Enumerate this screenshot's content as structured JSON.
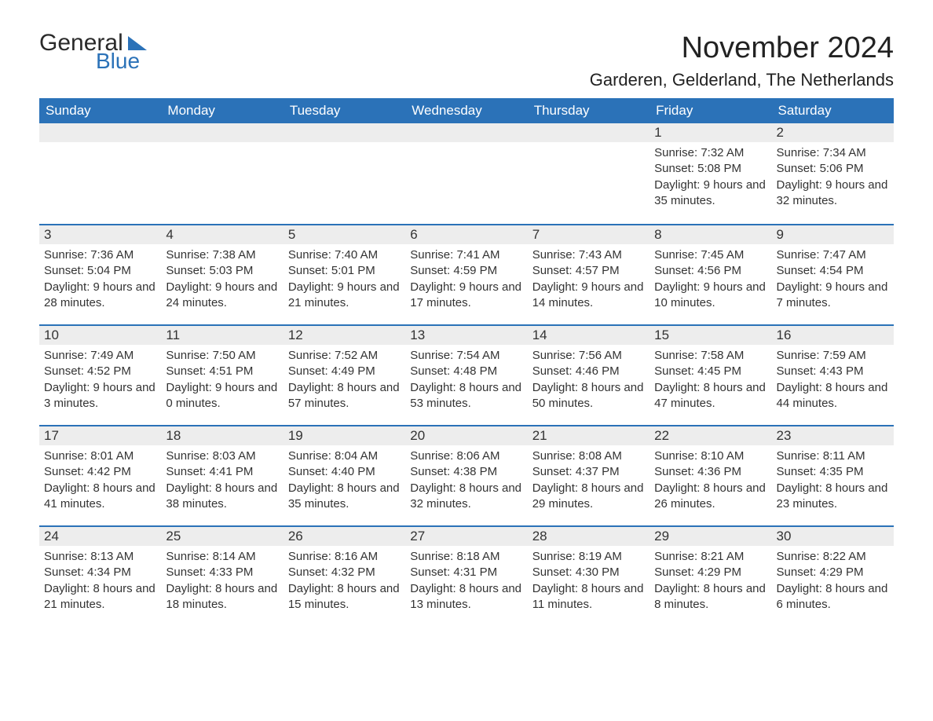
{
  "logo": {
    "word1": "General",
    "word2": "Blue"
  },
  "header": {
    "title": "November 2024",
    "location": "Garderen, Gelderland, The Netherlands"
  },
  "colors": {
    "header_bg": "#2b72b8",
    "header_text": "#ffffff",
    "daynum_bg": "#ededed",
    "row_rule": "#2b72b8",
    "text": "#333333",
    "page_bg": "#ffffff"
  },
  "typography": {
    "title_fontsize": 38,
    "location_fontsize": 22,
    "dayheader_fontsize": 17,
    "body_fontsize": 15
  },
  "layout": {
    "columns": 7,
    "rows": 5,
    "first_weekday_index": 5
  },
  "weekdays": [
    "Sunday",
    "Monday",
    "Tuesday",
    "Wednesday",
    "Thursday",
    "Friday",
    "Saturday"
  ],
  "days": [
    {
      "n": 1,
      "sunrise": "7:32 AM",
      "sunset": "5:08 PM",
      "daylight": "9 hours and 35 minutes."
    },
    {
      "n": 2,
      "sunrise": "7:34 AM",
      "sunset": "5:06 PM",
      "daylight": "9 hours and 32 minutes."
    },
    {
      "n": 3,
      "sunrise": "7:36 AM",
      "sunset": "5:04 PM",
      "daylight": "9 hours and 28 minutes."
    },
    {
      "n": 4,
      "sunrise": "7:38 AM",
      "sunset": "5:03 PM",
      "daylight": "9 hours and 24 minutes."
    },
    {
      "n": 5,
      "sunrise": "7:40 AM",
      "sunset": "5:01 PM",
      "daylight": "9 hours and 21 minutes."
    },
    {
      "n": 6,
      "sunrise": "7:41 AM",
      "sunset": "4:59 PM",
      "daylight": "9 hours and 17 minutes."
    },
    {
      "n": 7,
      "sunrise": "7:43 AM",
      "sunset": "4:57 PM",
      "daylight": "9 hours and 14 minutes."
    },
    {
      "n": 8,
      "sunrise": "7:45 AM",
      "sunset": "4:56 PM",
      "daylight": "9 hours and 10 minutes."
    },
    {
      "n": 9,
      "sunrise": "7:47 AM",
      "sunset": "4:54 PM",
      "daylight": "9 hours and 7 minutes."
    },
    {
      "n": 10,
      "sunrise": "7:49 AM",
      "sunset": "4:52 PM",
      "daylight": "9 hours and 3 minutes."
    },
    {
      "n": 11,
      "sunrise": "7:50 AM",
      "sunset": "4:51 PM",
      "daylight": "9 hours and 0 minutes."
    },
    {
      "n": 12,
      "sunrise": "7:52 AM",
      "sunset": "4:49 PM",
      "daylight": "8 hours and 57 minutes."
    },
    {
      "n": 13,
      "sunrise": "7:54 AM",
      "sunset": "4:48 PM",
      "daylight": "8 hours and 53 minutes."
    },
    {
      "n": 14,
      "sunrise": "7:56 AM",
      "sunset": "4:46 PM",
      "daylight": "8 hours and 50 minutes."
    },
    {
      "n": 15,
      "sunrise": "7:58 AM",
      "sunset": "4:45 PM",
      "daylight": "8 hours and 47 minutes."
    },
    {
      "n": 16,
      "sunrise": "7:59 AM",
      "sunset": "4:43 PM",
      "daylight": "8 hours and 44 minutes."
    },
    {
      "n": 17,
      "sunrise": "8:01 AM",
      "sunset": "4:42 PM",
      "daylight": "8 hours and 41 minutes."
    },
    {
      "n": 18,
      "sunrise": "8:03 AM",
      "sunset": "4:41 PM",
      "daylight": "8 hours and 38 minutes."
    },
    {
      "n": 19,
      "sunrise": "8:04 AM",
      "sunset": "4:40 PM",
      "daylight": "8 hours and 35 minutes."
    },
    {
      "n": 20,
      "sunrise": "8:06 AM",
      "sunset": "4:38 PM",
      "daylight": "8 hours and 32 minutes."
    },
    {
      "n": 21,
      "sunrise": "8:08 AM",
      "sunset": "4:37 PM",
      "daylight": "8 hours and 29 minutes."
    },
    {
      "n": 22,
      "sunrise": "8:10 AM",
      "sunset": "4:36 PM",
      "daylight": "8 hours and 26 minutes."
    },
    {
      "n": 23,
      "sunrise": "8:11 AM",
      "sunset": "4:35 PM",
      "daylight": "8 hours and 23 minutes."
    },
    {
      "n": 24,
      "sunrise": "8:13 AM",
      "sunset": "4:34 PM",
      "daylight": "8 hours and 21 minutes."
    },
    {
      "n": 25,
      "sunrise": "8:14 AM",
      "sunset": "4:33 PM",
      "daylight": "8 hours and 18 minutes."
    },
    {
      "n": 26,
      "sunrise": "8:16 AM",
      "sunset": "4:32 PM",
      "daylight": "8 hours and 15 minutes."
    },
    {
      "n": 27,
      "sunrise": "8:18 AM",
      "sunset": "4:31 PM",
      "daylight": "8 hours and 13 minutes."
    },
    {
      "n": 28,
      "sunrise": "8:19 AM",
      "sunset": "4:30 PM",
      "daylight": "8 hours and 11 minutes."
    },
    {
      "n": 29,
      "sunrise": "8:21 AM",
      "sunset": "4:29 PM",
      "daylight": "8 hours and 8 minutes."
    },
    {
      "n": 30,
      "sunrise": "8:22 AM",
      "sunset": "4:29 PM",
      "daylight": "8 hours and 6 minutes."
    }
  ],
  "labels": {
    "sunrise": "Sunrise: ",
    "sunset": "Sunset: ",
    "daylight": "Daylight: "
  }
}
